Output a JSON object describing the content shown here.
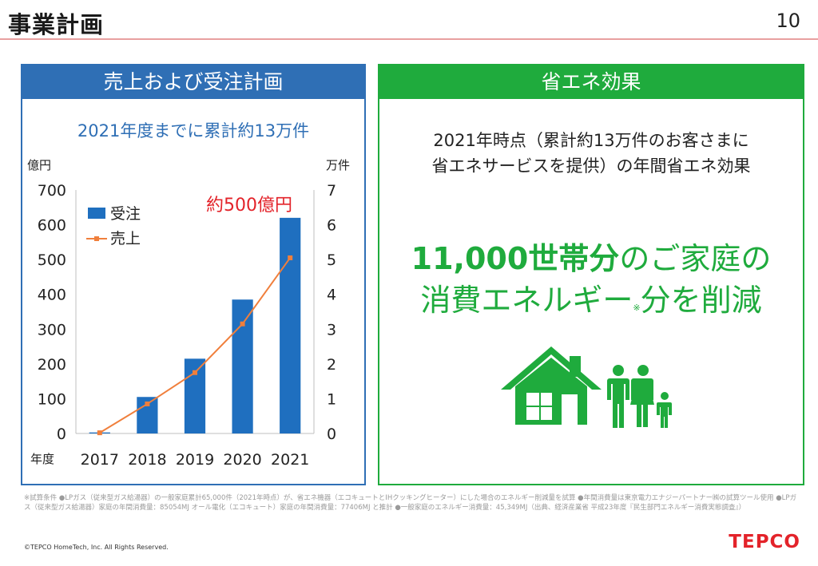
{
  "page": {
    "title": "事業計画",
    "number": "10"
  },
  "left_panel": {
    "header": "売上および受注計画",
    "subtitle": "2021年度までに累計約13万件"
  },
  "chart_data": {
    "type": "bar",
    "title": "2021年度までに累計約13万件",
    "categories": [
      "2017",
      "2018",
      "2019",
      "2020",
      "2021"
    ],
    "xlabel": "年度",
    "ylabel_left": "億円",
    "ylabel_right": "万件",
    "ylim_left": [
      0,
      700
    ],
    "ylim_right": [
      0,
      7
    ],
    "yticks_left": [
      0,
      100,
      200,
      300,
      400,
      500,
      600,
      700
    ],
    "yticks_right": [
      0,
      1,
      2,
      3,
      4,
      5,
      6,
      7
    ],
    "series": [
      {
        "name": "受注",
        "type": "bar",
        "axis": "left",
        "color": "#1f6fbf",
        "values": [
          3,
          105,
          215,
          385,
          620
        ]
      },
      {
        "name": "売上",
        "type": "line",
        "axis": "right",
        "color": "#f07f3c",
        "values": [
          0.02,
          0.85,
          1.75,
          3.15,
          5.05
        ]
      }
    ],
    "annotation": {
      "text": "約500億円",
      "color": "#e3232a"
    },
    "legend_position": "top-left"
  },
  "right_panel": {
    "header": "省エネ効果",
    "intro_line1": "2021年時点（累計約13万件のお客さまに",
    "intro_line2": "省エネサービスを提供）の年間省エネ効果",
    "main_bold": "11,000世帯分",
    "main_rest1": "のご家庭の",
    "main_line2a": "消費エネルギー",
    "main_mark": "※",
    "main_line2b": "分を削減",
    "accent_color": "#1fab3d"
  },
  "footnote": "※試算条件 ●LPガス（従来型ガス給湯器）の一般家庭累計65,000件（2021年時点）が、省エネ機器（エコキュートとIHクッキングヒーター）にした場合のエネルギー削減量を試算 ●年間消費量は東京電力エナジーパートナー㈱の試算ツール使用 ●LPガス（従来型ガス給湯器）家庭の年間消費量：85054MJ オール電化（エコキュート）家庭の年間消費量：77406MJ と推計 ●一般家庭のエネルギー消費量：45,349MJ（出典、経済産業省 平成23年度『民生部門エネルギー消費実態調査』）",
  "copyright": "©TEPCO HomeTech, Inc. All Rights Reserved.",
  "logo": "TEPCO"
}
